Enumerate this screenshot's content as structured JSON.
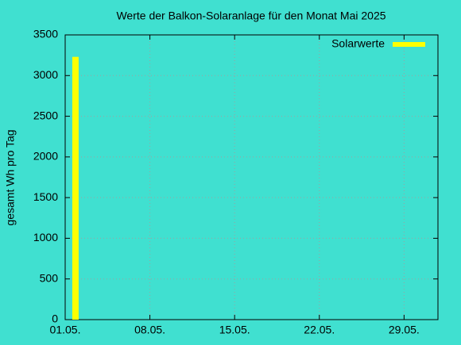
{
  "chart_data": {
    "type": "bar",
    "title": "Werte der Balkon-Solaranlage für den Monat Mai 2025",
    "y_label": "gesamt Wh pro Tag",
    "x": [
      1.85
    ],
    "series": [
      {
        "name": "Solarwerte",
        "color": "#ffff00",
        "values": [
          3230
        ]
      }
    ],
    "xlim": [
      1,
      31.8
    ],
    "xticks": [
      {
        "value": 1,
        "label": "01.05."
      },
      {
        "value": 8,
        "label": "08.05."
      },
      {
        "value": 15,
        "label": "15.05."
      },
      {
        "value": 22,
        "label": "22.05."
      },
      {
        "value": 29,
        "label": "29.05."
      }
    ],
    "ylim": [
      0,
      3500
    ],
    "yticks": [
      0,
      500,
      1000,
      1500,
      2000,
      2500,
      3000,
      3500
    ],
    "grid": true,
    "legend": "upper-right"
  }
}
